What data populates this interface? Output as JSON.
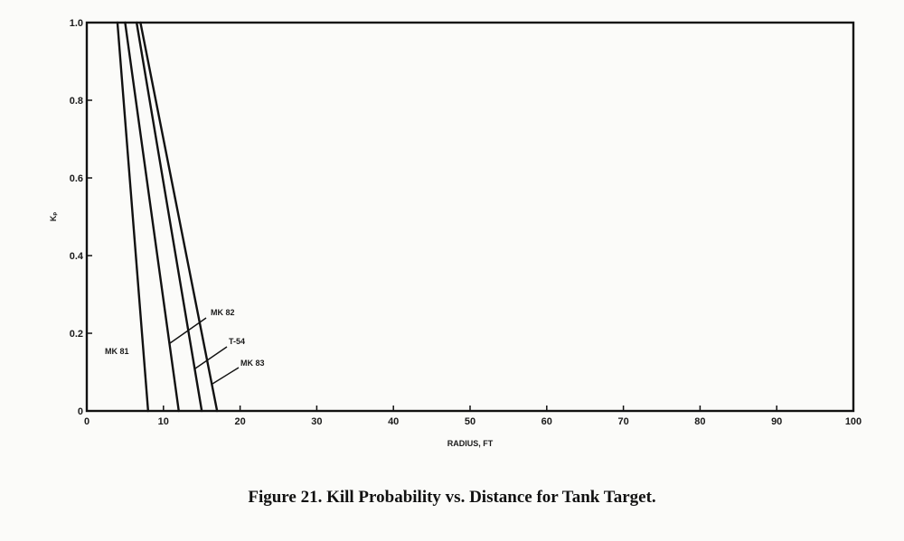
{
  "caption": "Figure 21.  Kill Probability vs. Distance for Tank Target.",
  "chart_data": {
    "type": "line",
    "xlabel": "RADIUS, FT",
    "ylabel": "Kₚ",
    "xlim": [
      0,
      100
    ],
    "ylim": [
      0,
      1.0
    ],
    "x_ticks": [
      "0",
      "10",
      "20",
      "30",
      "40",
      "50",
      "60",
      "70",
      "80",
      "90",
      "100"
    ],
    "y_ticks": [
      "0",
      "0.2",
      "0.4",
      "0.6",
      "0.8",
      "1.0"
    ],
    "grid": false,
    "series": [
      {
        "name": "MK 81",
        "x": [
          4,
          8
        ],
        "y": [
          1.0,
          0
        ]
      },
      {
        "name": "MK 82",
        "x": [
          5,
          12
        ],
        "y": [
          1.0,
          0
        ]
      },
      {
        "name": "T-54",
        "x": [
          6.5,
          15
        ],
        "y": [
          1.0,
          0
        ]
      },
      {
        "name": "MK 83",
        "x": [
          7,
          17
        ],
        "y": [
          1.0,
          0
        ]
      }
    ]
  }
}
